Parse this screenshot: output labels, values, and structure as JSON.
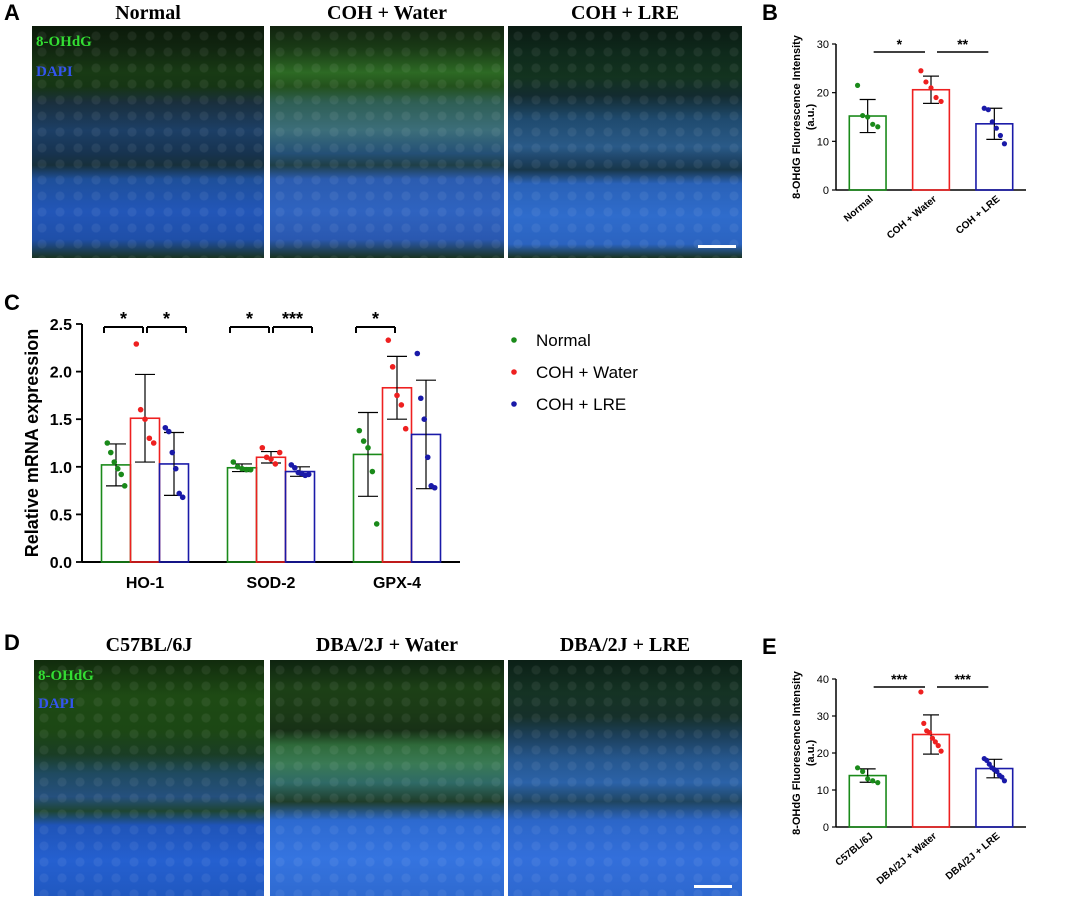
{
  "panels": {
    "A": {
      "letter": "A",
      "titles": [
        "Normal",
        "COH + Water",
        "COH + LRE"
      ],
      "stain_labels": {
        "green": "8-OHdG",
        "blue": "DAPI"
      }
    },
    "B": {
      "letter": "B"
    },
    "C": {
      "letter": "C"
    },
    "D": {
      "letter": "D",
      "titles": [
        "C57BL/6J",
        "DBA/2J + Water",
        "DBA/2J + LRE"
      ],
      "stain_labels": {
        "green": "8-OHdG",
        "blue": "DAPI"
      }
    },
    "E": {
      "letter": "E"
    }
  },
  "colors": {
    "normal": "#1a8a1a",
    "water": "#ee2020",
    "lre": "#1a1aa8",
    "sig": "#000000"
  },
  "chart_data": [
    {
      "id": "B",
      "type": "bar",
      "ylabel": "8-OHdG  Fluorescence Intensity\n(a.u.)",
      "ylim": [
        0,
        30
      ],
      "yticks": [
        0,
        10,
        20,
        30
      ],
      "categories": [
        "Normal",
        "COH + Water",
        "COH + LRE"
      ],
      "means": [
        15.2,
        20.6,
        13.6
      ],
      "sd": [
        3.4,
        2.8,
        3.2
      ],
      "points": [
        [
          21.5,
          15.3,
          15.0,
          13.5,
          13.0
        ],
        [
          24.5,
          22.2,
          21.0,
          19.0,
          18.2
        ],
        [
          16.8,
          16.5,
          14.0,
          12.7,
          11.2,
          9.5
        ]
      ],
      "significance": [
        {
          "from": 0,
          "to": 1,
          "label": "*"
        },
        {
          "from": 1,
          "to": 2,
          "label": "**"
        }
      ]
    },
    {
      "id": "C",
      "type": "bar",
      "ylabel": "Relative mRNA expression",
      "ylim": [
        0,
        2.5
      ],
      "yticks": [
        0.0,
        0.5,
        1.0,
        1.5,
        2.0,
        2.5
      ],
      "groups": [
        "HO-1",
        "SOD-2",
        "GPX-4"
      ],
      "legend": [
        "Normal",
        "COH + Water",
        "COH + LRE"
      ],
      "series": [
        {
          "name": "Normal",
          "means": [
            1.02,
            0.99,
            1.13
          ],
          "sd": [
            0.22,
            0.04,
            0.44
          ],
          "points": [
            [
              1.25,
              1.15,
              1.05,
              0.98,
              0.92,
              0.8
            ],
            [
              1.05,
              1.0,
              0.98,
              0.97,
              0.97
            ],
            [
              1.38,
              1.27,
              1.2,
              0.95,
              0.4
            ]
          ]
        },
        {
          "name": "COH + Water",
          "means": [
            1.51,
            1.1,
            1.83
          ],
          "sd": [
            0.46,
            0.06,
            0.33
          ],
          "points": [
            [
              2.29,
              1.6,
              1.5,
              1.3,
              1.25
            ],
            [
              1.2,
              1.1,
              1.08,
              1.03,
              1.15
            ],
            [
              2.33,
              2.05,
              1.75,
              1.65,
              1.4
            ]
          ]
        },
        {
          "name": "COH + LRE",
          "means": [
            1.03,
            0.95,
            1.34
          ],
          "sd": [
            0.33,
            0.05,
            0.57
          ],
          "points": [
            [
              1.41,
              1.37,
              1.15,
              0.98,
              0.72,
              0.68
            ],
            [
              1.02,
              0.99,
              0.94,
              0.93,
              0.91,
              0.92
            ],
            [
              2.19,
              1.72,
              1.5,
              1.1,
              0.8,
              0.78
            ]
          ]
        }
      ],
      "significance": [
        {
          "group": 0,
          "from": 0,
          "to": 1,
          "label": "*"
        },
        {
          "group": 0,
          "from": 1,
          "to": 2,
          "label": "*"
        },
        {
          "group": 1,
          "from": 0,
          "to": 1,
          "label": "*"
        },
        {
          "group": 1,
          "from": 1,
          "to": 2,
          "label": "***"
        },
        {
          "group": 2,
          "from": 0,
          "to": 1,
          "label": "*"
        }
      ]
    },
    {
      "id": "E",
      "type": "bar",
      "ylabel": "8-OHdG  Fluorescence Intensity\n(a.u.)",
      "ylim": [
        0,
        40
      ],
      "yticks": [
        0,
        10,
        20,
        30,
        40
      ],
      "categories": [
        "C57BL/6J",
        "DBA/2J + Water",
        "DBA/2J + LRE"
      ],
      "means": [
        13.9,
        25.0,
        15.8
      ],
      "sd": [
        1.8,
        5.3,
        2.5
      ],
      "points": [
        [
          16.0,
          15.0,
          13.0,
          12.5,
          12.0
        ],
        [
          36.5,
          28.0,
          26.0,
          25.5,
          24.0,
          23.0,
          22.0,
          20.5
        ],
        [
          18.5,
          18.0,
          17.0,
          16.0,
          15.5,
          15.0,
          14.0,
          13.5,
          12.5
        ]
      ],
      "significance": [
        {
          "from": 0,
          "to": 1,
          "label": "***"
        },
        {
          "from": 1,
          "to": 2,
          "label": "***"
        }
      ]
    }
  ]
}
